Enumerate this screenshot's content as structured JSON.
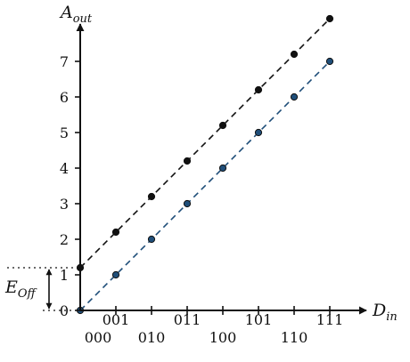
{
  "chart_data": {
    "type": "line",
    "x_categories": [
      "000",
      "001",
      "010",
      "011",
      "100",
      "101",
      "110",
      "111"
    ],
    "x_upper_labels": [
      "001",
      "011",
      "101",
      "111"
    ],
    "x_lower_labels": [
      "000",
      "010",
      "100",
      "110"
    ],
    "y_ticks": [
      "0",
      "1",
      "2",
      "3",
      "4",
      "5",
      "6",
      "7"
    ],
    "ylim": [
      0,
      8
    ],
    "xlabel_main": "D",
    "xlabel_sub": "in",
    "ylabel_main": "A",
    "ylabel_sub": "out",
    "series": [
      {
        "color": "#111111",
        "values": [
          1.2,
          2.2,
          3.2,
          4.2,
          5.2,
          6.2,
          7.2,
          8.2
        ]
      },
      {
        "color": "#1f4e79",
        "values": [
          0,
          1,
          2,
          3,
          4,
          5,
          6,
          7
        ]
      }
    ],
    "annotation": {
      "label_main": "E",
      "label_sub": "Off",
      "offset_value": 1.2
    }
  }
}
